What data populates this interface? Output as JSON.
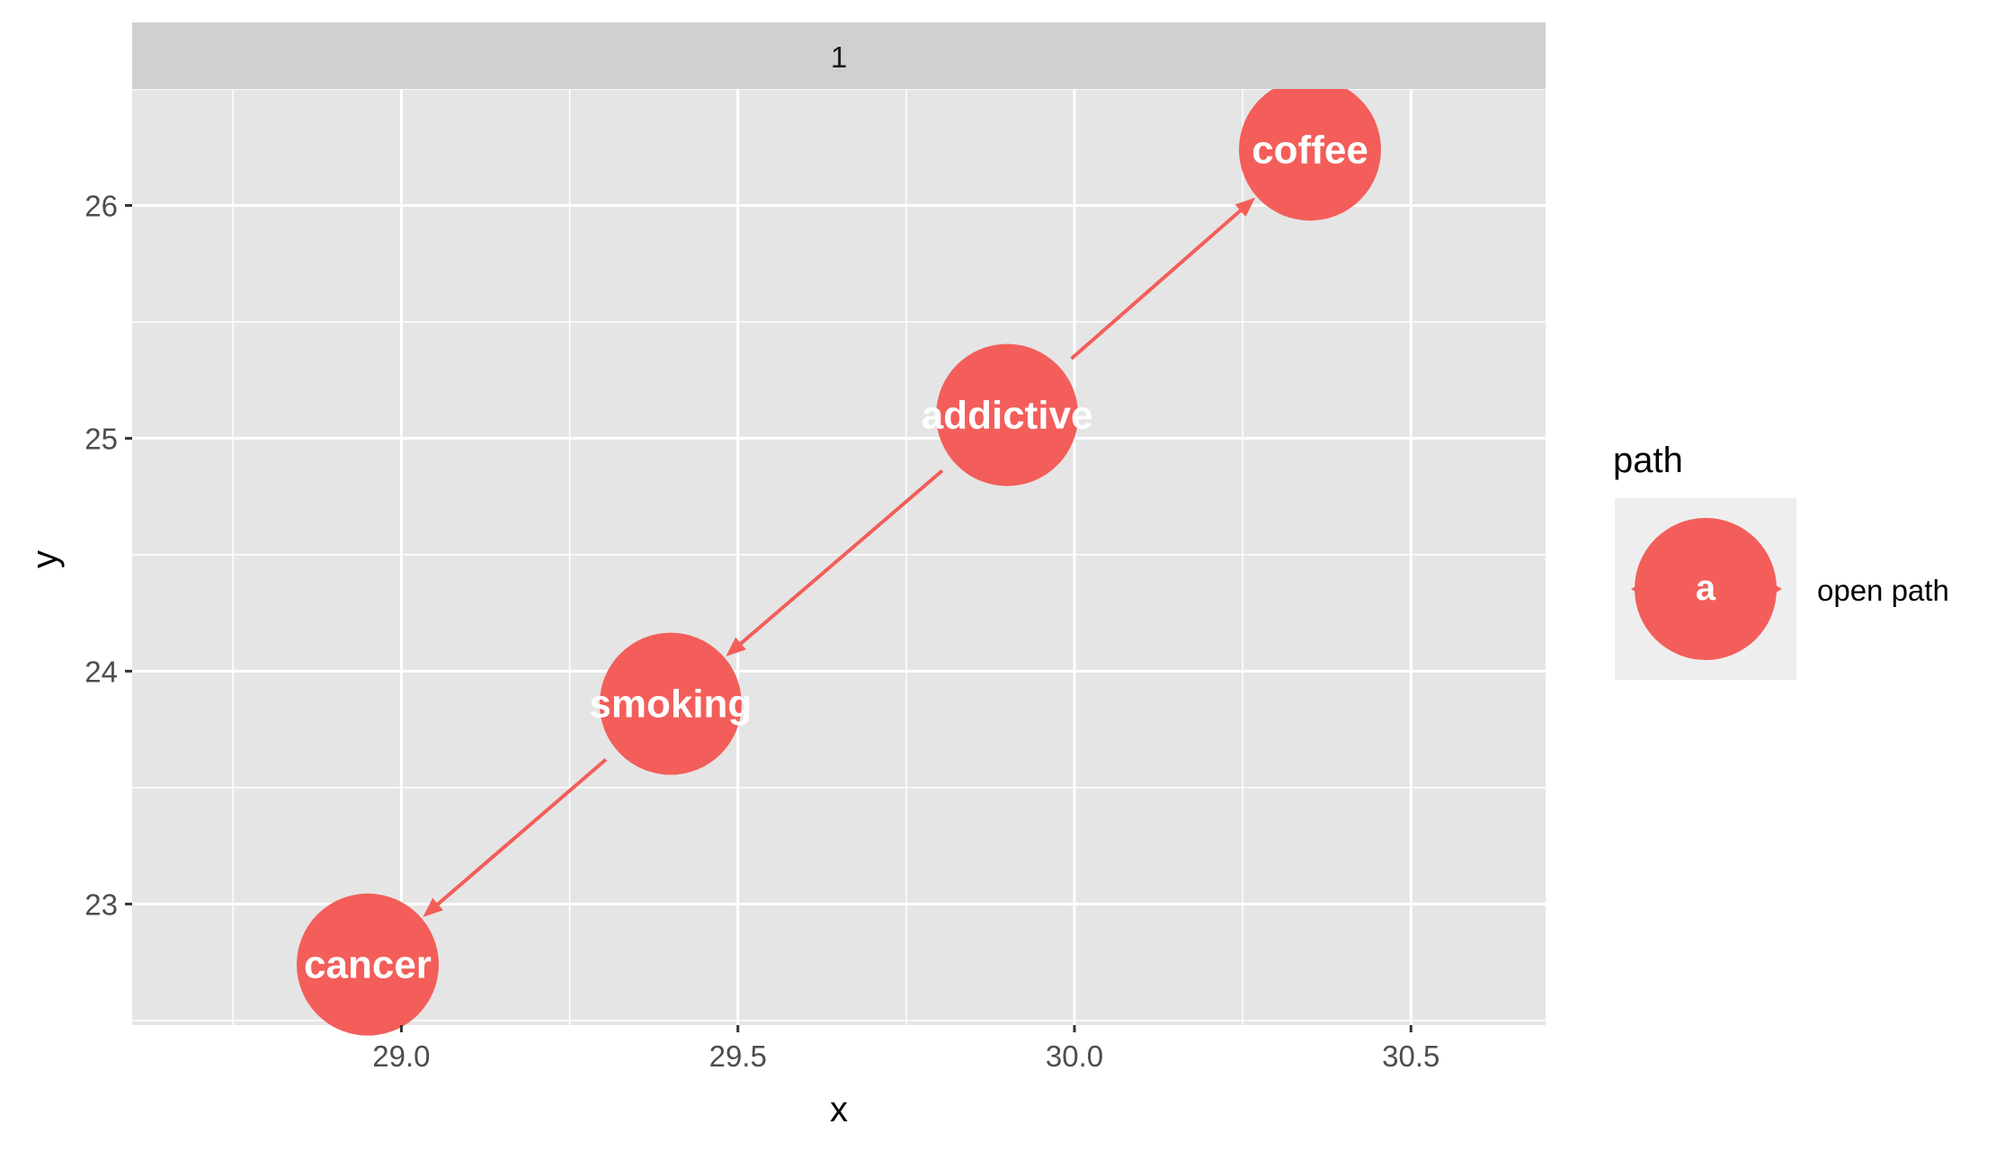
{
  "chart_data": {
    "type": "scatter",
    "facet_label": "1",
    "xlabel": "x",
    "ylabel": "y",
    "xlim": [
      28.6,
      30.7
    ],
    "ylim": [
      22.48,
      26.5
    ],
    "x_major_ticks": [
      29.0,
      29.5,
      30.0,
      30.5
    ],
    "x_tick_labels": [
      "29.0",
      "29.5",
      "30.0",
      "30.5"
    ],
    "x_minor_ticks": [
      28.75,
      29.25,
      29.75,
      30.25
    ],
    "y_major_ticks": [
      23,
      24,
      25,
      26
    ],
    "y_tick_labels": [
      "23",
      "24",
      "25",
      "26"
    ],
    "y_minor_ticks": [
      22.5,
      23.5,
      24.5,
      25.5,
      26.5
    ],
    "grid": true,
    "nodes": [
      {
        "name": "coffee",
        "x": 30.35,
        "y": 26.24
      },
      {
        "name": "addictive",
        "x": 29.9,
        "y": 25.1
      },
      {
        "name": "smoking",
        "x": 29.4,
        "y": 23.86
      },
      {
        "name": "cancer",
        "x": 28.95,
        "y": 22.74
      }
    ],
    "edges": [
      {
        "from": "addictive",
        "to": "coffee",
        "path": "open path"
      },
      {
        "from": "addictive",
        "to": "smoking",
        "path": "open path"
      },
      {
        "from": "smoking",
        "to": "cancer",
        "path": "open path"
      }
    ],
    "legend": {
      "title": "path",
      "position": "right",
      "items": [
        {
          "key": "a",
          "label": "open path",
          "color": "#F35E5A"
        }
      ]
    },
    "colors": {
      "node": "#F35E5A",
      "panel": "#E5E5E5",
      "strip": "#D0D0D0",
      "grid": "#FFFFFF",
      "legend_key_bg": "#EEEEEE"
    }
  }
}
